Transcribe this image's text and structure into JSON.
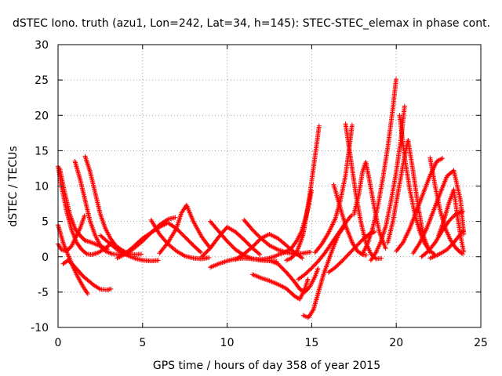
{
  "chart_data": {
    "type": "scatter",
    "title": "dSTEC Iono. truth (azu1, Lon=242, Lat=34, h=145): STEC-STEC_elemax in phase cont.",
    "xlabel": "GPS time / hours of day 358 of year 2015",
    "ylabel": "dSTEC  / TECUs",
    "xlim": [
      0,
      25
    ],
    "ylim": [
      -10,
      30
    ],
    "xticks": [
      0,
      5,
      10,
      15,
      20,
      25
    ],
    "yticks": [
      -10,
      -5,
      0,
      5,
      10,
      15,
      20,
      25,
      30
    ],
    "grid": true,
    "marker": "+",
    "color": "#ff0000",
    "arcs": [
      {
        "x": [
          0.0,
          0.2,
          0.5,
          0.8,
          1.1,
          1.4,
          1.7,
          2.0,
          2.4,
          2.8,
          3.2
        ],
        "y": [
          12.8,
          10.0,
          6.5,
          3.8,
          2.0,
          1.0,
          0.4,
          0.3,
          0.6,
          1.2,
          2.0
        ]
      },
      {
        "x": [
          0.0,
          0.3,
          0.6,
          0.9,
          1.2,
          1.5,
          1.8
        ],
        "y": [
          4.5,
          2.0,
          0.2,
          -1.5,
          -3.0,
          -4.3,
          -5.4
        ]
      },
      {
        "x": [
          0.0,
          0.2,
          0.5,
          0.8,
          1.0,
          1.3,
          1.6
        ],
        "y": [
          1.8,
          1.0,
          0.8,
          1.5,
          2.5,
          4.0,
          6.0
        ]
      },
      {
        "x": [
          0.1,
          0.4,
          0.7,
          1.0,
          1.3,
          1.6,
          2.0,
          2.5,
          3.0
        ],
        "y": [
          12.5,
          9.0,
          6.0,
          4.0,
          3.0,
          2.3,
          2.0,
          1.5,
          1.0
        ]
      },
      {
        "x": [
          0.3,
          0.6,
          0.9,
          1.2,
          1.5,
          1.8,
          2.1,
          2.5,
          2.9,
          3.2
        ],
        "y": [
          -1.0,
          -0.5,
          -1.2,
          -2.0,
          -2.8,
          -3.4,
          -4.0,
          -4.6,
          -4.7,
          -4.5
        ]
      },
      {
        "x": [
          1.0,
          1.3,
          1.6,
          1.9,
          2.2,
          2.5,
          2.8,
          3.2,
          3.6,
          4.0
        ],
        "y": [
          13.5,
          11.0,
          8.0,
          5.0,
          3.0,
          1.6,
          0.8,
          0.4,
          0.3,
          0.5
        ]
      },
      {
        "x": [
          1.6,
          1.9,
          2.2,
          2.5,
          2.8,
          3.1,
          3.4,
          3.8,
          4.2,
          4.6,
          5.0
        ],
        "y": [
          14.2,
          12.0,
          9.0,
          6.0,
          4.0,
          2.6,
          1.6,
          0.9,
          0.4,
          0.3,
          0.4
        ]
      },
      {
        "x": [
          2.5,
          3.0,
          3.5,
          4.0,
          4.5,
          5.0,
          5.5,
          6.0
        ],
        "y": [
          3.0,
          2.0,
          1.0,
          0.3,
          -0.2,
          -0.5,
          -0.6,
          -0.5
        ]
      },
      {
        "x": [
          4.0,
          4.5,
          5.0,
          5.5,
          6.0,
          6.5,
          7.0,
          7.5,
          8.0,
          8.5
        ],
        "y": [
          0.5,
          1.5,
          2.6,
          3.4,
          4.2,
          4.8,
          4.0,
          2.8,
          1.6,
          0.5
        ]
      },
      {
        "x": [
          3.5,
          4.0,
          4.5,
          5.0,
          5.5,
          6.0,
          6.5,
          7.0
        ],
        "y": [
          -0.2,
          0.4,
          1.2,
          2.2,
          3.4,
          4.5,
          5.3,
          5.6
        ]
      },
      {
        "x": [
          5.5,
          6.0,
          6.5,
          7.0,
          7.5,
          8.0,
          8.5,
          9.0
        ],
        "y": [
          5.2,
          3.2,
          1.8,
          0.8,
          0.1,
          -0.2,
          -0.3,
          -0.1
        ]
      },
      {
        "x": [
          6.0,
          6.5,
          7.0,
          7.3,
          7.6,
          8.0,
          8.5,
          9.0
        ],
        "y": [
          0.5,
          2.0,
          4.0,
          6.2,
          7.3,
          5.0,
          2.8,
          1.2
        ]
      },
      {
        "x": [
          8.5,
          9.0,
          9.5,
          10.0,
          10.5,
          11.0,
          11.5,
          12.0
        ],
        "y": [
          0.0,
          1.2,
          2.8,
          4.2,
          3.5,
          2.4,
          1.2,
          0.2
        ]
      },
      {
        "x": [
          9.0,
          9.5,
          10.0,
          10.5,
          11.0,
          11.5,
          12.0,
          12.5,
          13.0
        ],
        "y": [
          5.0,
          3.6,
          2.2,
          1.0,
          0.2,
          -0.3,
          -0.4,
          -0.2,
          0.2
        ]
      },
      {
        "x": [
          9.0,
          9.5,
          10.0,
          10.5,
          11.0,
          11.5,
          12.0,
          12.5,
          13.0
        ],
        "y": [
          -1.5,
          -1.0,
          -0.6,
          -0.3,
          -0.2,
          -0.3,
          -0.5,
          -0.6,
          -0.7
        ]
      },
      {
        "x": [
          10.5,
          11.0,
          11.5,
          12.0,
          12.5,
          13.0,
          13.5,
          14.0,
          14.5
        ],
        "y": [
          -0.4,
          0.4,
          1.4,
          2.6,
          3.2,
          2.6,
          1.6,
          0.6,
          -0.3
        ]
      },
      {
        "x": [
          11.0,
          11.5,
          12.0,
          12.5,
          13.0,
          13.5,
          14.0,
          14.5,
          15.0
        ],
        "y": [
          5.2,
          3.8,
          2.6,
          1.6,
          1.0,
          0.6,
          0.4,
          0.5,
          0.7
        ]
      },
      {
        "x": [
          12.5,
          13.0,
          13.5,
          14.0,
          14.3,
          14.6,
          14.9,
          15.2,
          15.4
        ],
        "y": [
          -0.5,
          -1.0,
          -2.2,
          -3.6,
          -4.6,
          -5.0,
          -4.2,
          -2.8,
          -1.5
        ]
      },
      {
        "x": [
          11.5,
          12.0,
          12.5,
          13.0,
          13.5,
          14.0,
          14.3,
          14.6,
          14.8
        ],
        "y": [
          -2.5,
          -3.0,
          -3.4,
          -3.9,
          -4.5,
          -5.6,
          -6.0,
          -4.5,
          -3.0
        ]
      },
      {
        "x": [
          13.5,
          13.8,
          14.1,
          14.3,
          14.5,
          14.7,
          14.9,
          15.1,
          15.3,
          15.45
        ],
        "y": [
          -0.5,
          -0.2,
          0.6,
          1.8,
          3.2,
          6.0,
          9.0,
          12.5,
          16.0,
          18.7
        ]
      },
      {
        "x": [
          13.0,
          13.4,
          13.8,
          14.1,
          14.4,
          14.6,
          14.8,
          15.0
        ],
        "y": [
          0.3,
          0.6,
          1.2,
          2.2,
          3.6,
          5.2,
          7.0,
          9.5
        ]
      },
      {
        "x": [
          14.5,
          14.8,
          15.1,
          15.4,
          15.7,
          16.0,
          16.3,
          16.6,
          17.0
        ],
        "y": [
          -8.3,
          -8.6,
          -7.5,
          -5.0,
          -2.5,
          -0.5,
          1.5,
          3.2,
          4.5
        ]
      },
      {
        "x": [
          14.2,
          14.6,
          15.0,
          15.4,
          15.8,
          16.2,
          16.6,
          17.0,
          17.4
        ],
        "y": [
          -3.2,
          -2.5,
          -1.6,
          -0.6,
          0.6,
          2.0,
          3.4,
          4.8,
          6.0
        ]
      },
      {
        "x": [
          15.2,
          15.6,
          16.0,
          16.4,
          16.7,
          17.0,
          17.2,
          17.4
        ],
        "y": [
          0.6,
          1.8,
          3.4,
          5.4,
          8.0,
          11.5,
          15.0,
          18.8
        ]
      },
      {
        "x": [
          16.3,
          16.5,
          16.8,
          17.1,
          17.4,
          17.7,
          18.0,
          18.3
        ],
        "y": [
          10.2,
          8.5,
          6.0,
          3.8,
          2.0,
          0.8,
          0.3,
          0.2
        ]
      },
      {
        "x": [
          16.0,
          16.4,
          16.8,
          17.2,
          17.6,
          18.0,
          18.4,
          18.8
        ],
        "y": [
          -2.2,
          -1.5,
          -0.6,
          0.4,
          1.4,
          2.4,
          3.2,
          3.6
        ]
      },
      {
        "x": [
          17.0,
          17.3,
          17.6,
          17.9,
          18.2,
          18.5,
          18.8,
          19.2
        ],
        "y": [
          18.8,
          14.0,
          9.0,
          5.0,
          2.0,
          0.4,
          -0.3,
          -0.2
        ]
      },
      {
        "x": [
          17.5,
          17.8,
          18.0,
          18.2,
          18.4,
          18.7,
          19.0,
          19.4
        ],
        "y": [
          6.0,
          9.0,
          12.0,
          13.4,
          11.0,
          7.0,
          3.5,
          1.0
        ]
      },
      {
        "x": [
          18.0,
          18.3,
          18.6,
          18.9,
          19.2,
          19.5,
          19.8,
          20.0
        ],
        "y": [
          0.4,
          1.8,
          4.0,
          7.0,
          11.0,
          15.5,
          21.0,
          25.3
        ]
      },
      {
        "x": [
          18.5,
          18.8,
          19.1,
          19.4,
          19.7,
          20.0,
          20.3,
          20.5
        ],
        "y": [
          -0.5,
          0.6,
          2.2,
          4.5,
          8.0,
          12.0,
          17.0,
          21.5
        ]
      },
      {
        "x": [
          19.5,
          19.8,
          20.1,
          20.4,
          20.7,
          21.0,
          21.3,
          21.6,
          22.0
        ],
        "y": [
          2.0,
          5.0,
          9.0,
          13.0,
          16.5,
          12.0,
          7.0,
          3.0,
          0.5
        ]
      },
      {
        "x": [
          20.2,
          20.5,
          20.8,
          21.1,
          21.4,
          21.7,
          22.0,
          22.3
        ],
        "y": [
          20.0,
          14.0,
          9.5,
          6.0,
          3.5,
          1.8,
          0.8,
          0.3
        ]
      },
      {
        "x": [
          20.0,
          20.4,
          20.8,
          21.2,
          21.6,
          22.0,
          22.4,
          22.8
        ],
        "y": [
          0.8,
          2.0,
          4.0,
          6.5,
          9.0,
          11.5,
          13.5,
          14.0
        ]
      },
      {
        "x": [
          21.0,
          21.4,
          21.8,
          22.2,
          22.6,
          23.0,
          23.4,
          23.8,
          24.0
        ],
        "y": [
          0.5,
          2.0,
          4.0,
          6.5,
          9.0,
          11.4,
          12.2,
          8.0,
          3.0
        ]
      },
      {
        "x": [
          22.0,
          22.3,
          22.6,
          22.9,
          23.2,
          23.5,
          23.8,
          24.0
        ],
        "y": [
          14.0,
          10.0,
          6.5,
          4.0,
          2.4,
          1.3,
          0.6,
          0.3
        ]
      },
      {
        "x": [
          21.5,
          21.9,
          22.3,
          22.7,
          23.1,
          23.5,
          23.8,
          24.0
        ],
        "y": [
          0.0,
          0.8,
          2.0,
          3.6,
          5.0,
          6.0,
          6.3,
          6.5
        ]
      },
      {
        "x": [
          22.5,
          22.8,
          23.1,
          23.4,
          23.6,
          23.8,
          24.0
        ],
        "y": [
          3.0,
          5.0,
          7.5,
          9.5,
          6.0,
          3.0,
          0.5
        ]
      },
      {
        "x": [
          22.0,
          22.5,
          23.0,
          23.4,
          23.8,
          24.0
        ],
        "y": [
          -0.2,
          0.3,
          1.0,
          2.0,
          3.2,
          3.8
        ]
      }
    ]
  }
}
